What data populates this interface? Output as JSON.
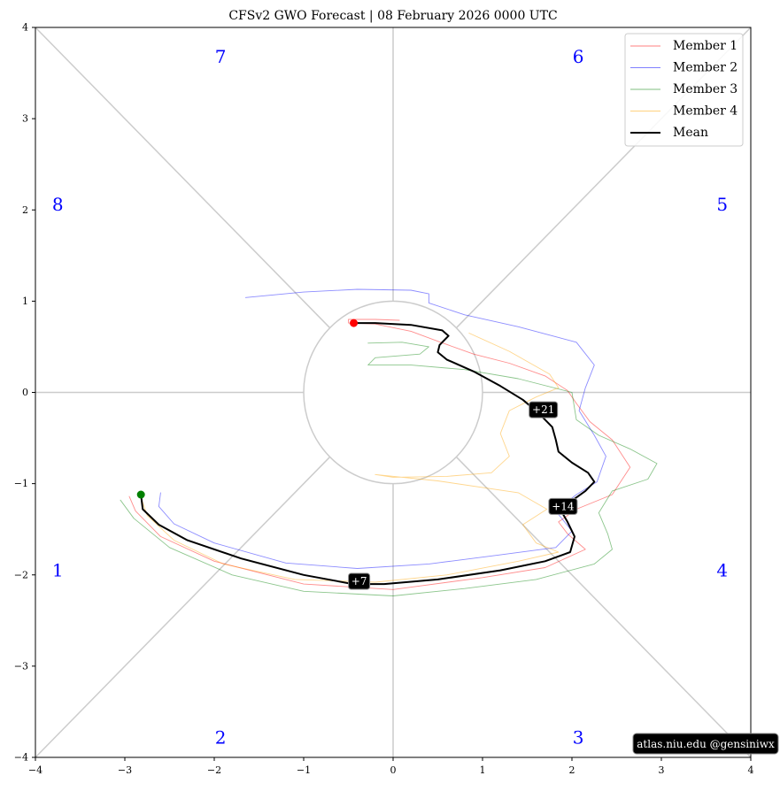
{
  "chart_data": {
    "type": "line",
    "title": "CFSv2 GWO Forecast   |   08  February  2026 0000 UTC",
    "xlim": [
      -4,
      4
    ],
    "ylim": [
      -4,
      4
    ],
    "x_ticks": [
      "−4",
      "−3",
      "−2",
      "−1",
      "0",
      "1",
      "2",
      "3",
      "4"
    ],
    "y_ticks": [
      "−4",
      "−3",
      "−2",
      "−1",
      "0",
      "1",
      "2",
      "3",
      "4"
    ],
    "phase_labels": [
      {
        "text": "1",
        "x": -3.75,
        "y": -1.95
      },
      {
        "text": "2",
        "x": -1.93,
        "y": -3.78
      },
      {
        "text": "3",
        "x": 2.07,
        "y": -3.78
      },
      {
        "text": "4",
        "x": 3.68,
        "y": -1.95
      },
      {
        "text": "5",
        "x": 3.68,
        "y": 2.06
      },
      {
        "text": "6",
        "x": 2.07,
        "y": 3.68
      },
      {
        "text": "7",
        "x": -1.93,
        "y": 3.68
      },
      {
        "text": "8",
        "x": -3.75,
        "y": 2.06
      }
    ],
    "legend_position": "top-right",
    "series": [
      {
        "name": "Member 1",
        "color": "#ff0000",
        "points": [
          [
            0.07,
            0.79
          ],
          [
            -0.2,
            0.8
          ],
          [
            -0.5,
            0.8
          ],
          [
            -0.5,
            0.76
          ],
          [
            -0.2,
            0.75
          ],
          [
            0.2,
            0.67
          ],
          [
            0.5,
            0.56
          ],
          [
            0.9,
            0.42
          ],
          [
            1.3,
            0.32
          ],
          [
            1.7,
            0.18
          ],
          [
            1.95,
            0.02
          ],
          [
            2.05,
            -0.12
          ],
          [
            2.2,
            -0.32
          ],
          [
            2.45,
            -0.52
          ],
          [
            2.65,
            -0.82
          ],
          [
            2.45,
            -1.12
          ],
          [
            2.05,
            -1.28
          ],
          [
            1.85,
            -1.42
          ],
          [
            1.95,
            -1.55
          ],
          [
            2.15,
            -1.72
          ],
          [
            1.7,
            -1.92
          ],
          [
            1.0,
            -2.03
          ],
          [
            0.0,
            -2.16
          ],
          [
            -1.0,
            -2.1
          ],
          [
            -2.0,
            -1.85
          ],
          [
            -2.6,
            -1.58
          ],
          [
            -2.88,
            -1.3
          ],
          [
            -2.95,
            -1.14
          ]
        ]
      },
      {
        "name": "Member 2",
        "color": "#0000ff",
        "points": [
          [
            -1.65,
            1.04
          ],
          [
            -1.0,
            1.1
          ],
          [
            -0.4,
            1.13
          ],
          [
            0.2,
            1.12
          ],
          [
            0.4,
            1.08
          ],
          [
            0.4,
            0.98
          ],
          [
            0.8,
            0.85
          ],
          [
            1.4,
            0.72
          ],
          [
            2.05,
            0.55
          ],
          [
            2.25,
            0.3
          ],
          [
            2.15,
            0.05
          ],
          [
            2.08,
            -0.2
          ],
          [
            2.25,
            -0.47
          ],
          [
            2.38,
            -0.7
          ],
          [
            2.28,
            -0.98
          ],
          [
            2.05,
            -1.12
          ],
          [
            1.82,
            -1.3
          ],
          [
            2.0,
            -1.52
          ],
          [
            1.82,
            -1.7
          ],
          [
            1.2,
            -1.78
          ],
          [
            0.4,
            -1.88
          ],
          [
            -0.4,
            -1.93
          ],
          [
            -1.2,
            -1.87
          ],
          [
            -2.0,
            -1.65
          ],
          [
            -2.45,
            -1.44
          ],
          [
            -2.62,
            -1.25
          ],
          [
            -2.6,
            -1.1
          ]
        ]
      },
      {
        "name": "Member 3",
        "color": "#008000",
        "points": [
          [
            -0.28,
            0.54
          ],
          [
            0.1,
            0.55
          ],
          [
            0.4,
            0.5
          ],
          [
            0.3,
            0.42
          ],
          [
            -0.2,
            0.38
          ],
          [
            -0.28,
            0.3
          ],
          [
            0.2,
            0.3
          ],
          [
            0.8,
            0.25
          ],
          [
            1.4,
            0.15
          ],
          [
            2.0,
            0.0
          ],
          [
            2.05,
            -0.3
          ],
          [
            2.3,
            -0.47
          ],
          [
            2.65,
            -0.62
          ],
          [
            2.95,
            -0.78
          ],
          [
            2.85,
            -0.95
          ],
          [
            2.45,
            -1.08
          ],
          [
            2.3,
            -1.32
          ],
          [
            2.4,
            -1.55
          ],
          [
            2.45,
            -1.72
          ],
          [
            2.25,
            -1.88
          ],
          [
            1.6,
            -2.05
          ],
          [
            0.8,
            -2.15
          ],
          [
            0.0,
            -2.23
          ],
          [
            -1.0,
            -2.18
          ],
          [
            -1.8,
            -2.0
          ],
          [
            -2.5,
            -1.7
          ],
          [
            -2.9,
            -1.38
          ],
          [
            -3.05,
            -1.18
          ]
        ]
      },
      {
        "name": "Member 4",
        "color": "#ffa500",
        "points": [
          [
            0.85,
            0.65
          ],
          [
            1.3,
            0.45
          ],
          [
            1.75,
            0.2
          ],
          [
            1.85,
            0.05
          ],
          [
            1.6,
            -0.05
          ],
          [
            1.3,
            -0.2
          ],
          [
            1.2,
            -0.45
          ],
          [
            1.3,
            -0.7
          ],
          [
            1.1,
            -0.88
          ],
          [
            0.6,
            -0.92
          ],
          [
            0.0,
            -0.93
          ],
          [
            -0.2,
            -0.9
          ],
          [
            0.5,
            -0.97
          ],
          [
            1.4,
            -1.1
          ],
          [
            1.72,
            -1.28
          ],
          [
            1.45,
            -1.45
          ],
          [
            1.6,
            -1.65
          ],
          [
            1.85,
            -1.75
          ],
          [
            1.4,
            -1.85
          ],
          [
            0.6,
            -2.0
          ],
          [
            -0.2,
            -2.08
          ],
          [
            -1.1,
            -2.05
          ],
          [
            -1.9,
            -1.88
          ],
          [
            -2.45,
            -1.62
          ],
          [
            -2.75,
            -1.35
          ],
          [
            -2.82,
            -1.15
          ]
        ]
      },
      {
        "name": "Mean",
        "color": "#000000",
        "points": [
          [
            -0.45,
            0.76
          ],
          [
            -0.2,
            0.76
          ],
          [
            0.2,
            0.74
          ],
          [
            0.55,
            0.68
          ],
          [
            0.62,
            0.62
          ],
          [
            0.52,
            0.52
          ],
          [
            0.5,
            0.44
          ],
          [
            0.6,
            0.36
          ],
          [
            0.9,
            0.23
          ],
          [
            1.2,
            0.07
          ],
          [
            1.45,
            -0.08
          ],
          [
            1.62,
            -0.22
          ],
          [
            1.78,
            -0.38
          ],
          [
            1.82,
            -0.52
          ],
          [
            1.85,
            -0.65
          ],
          [
            2.0,
            -0.77
          ],
          [
            2.18,
            -0.88
          ],
          [
            2.25,
            -0.98
          ],
          [
            2.15,
            -1.08
          ],
          [
            1.98,
            -1.2
          ],
          [
            1.88,
            -1.3
          ],
          [
            1.95,
            -1.42
          ],
          [
            2.03,
            -1.58
          ],
          [
            1.98,
            -1.75
          ],
          [
            1.7,
            -1.85
          ],
          [
            1.2,
            -1.95
          ],
          [
            0.5,
            -2.05
          ],
          [
            -0.1,
            -2.1
          ],
          [
            -0.45,
            -2.1
          ],
          [
            -1.0,
            -2.0
          ],
          [
            -1.7,
            -1.82
          ],
          [
            -2.3,
            -1.62
          ],
          [
            -2.62,
            -1.45
          ],
          [
            -2.8,
            -1.28
          ],
          [
            -2.82,
            -1.12
          ]
        ]
      }
    ],
    "start_marker": {
      "x": -0.44,
      "y": 0.76,
      "color": "#ff0000"
    },
    "end_marker": {
      "x": -2.82,
      "y": -1.12,
      "color": "#008000"
    },
    "day_labels": [
      {
        "text": "+7",
        "x": -0.38,
        "y": -2.07
      },
      {
        "text": "+14",
        "x": 1.9,
        "y": -1.25
      },
      {
        "text": "+21",
        "x": 1.68,
        "y": -0.19
      }
    ],
    "credit": "atlas.niu.edu  @gensiniwx"
  }
}
